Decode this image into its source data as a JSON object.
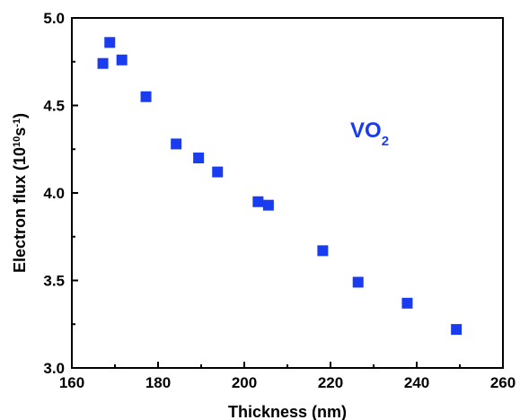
{
  "chart_data": {
    "type": "scatter",
    "title": "",
    "xlabel": "Thickness (nm)",
    "ylabel": {
      "prefix": "Electron flux (10",
      "sup1": "10",
      "mid": "s",
      "sup2": "-1",
      "suffix": ")"
    },
    "xlim": [
      160,
      260
    ],
    "ylim": [
      3.0,
      5.0
    ],
    "xticks": [
      "160",
      "180",
      "200",
      "220",
      "240",
      "260"
    ],
    "yticks": [
      "3.0",
      "3.5",
      "4.0",
      "4.5",
      "5.0"
    ],
    "grid": false,
    "marker": "square",
    "color": "#1a3cf0",
    "annotation": {
      "base": "VO",
      "sub": "2"
    },
    "series": [
      {
        "x": [
          167.2,
          168.8,
          171.6,
          177.2,
          184.2,
          189.4,
          193.8,
          203.2,
          205.6,
          218.2,
          226.4,
          237.8,
          249.2
        ],
        "y": [
          4.74,
          4.86,
          4.76,
          4.55,
          4.28,
          4.2,
          4.12,
          3.95,
          3.93,
          3.67,
          3.49,
          3.37,
          3.22
        ]
      }
    ]
  }
}
